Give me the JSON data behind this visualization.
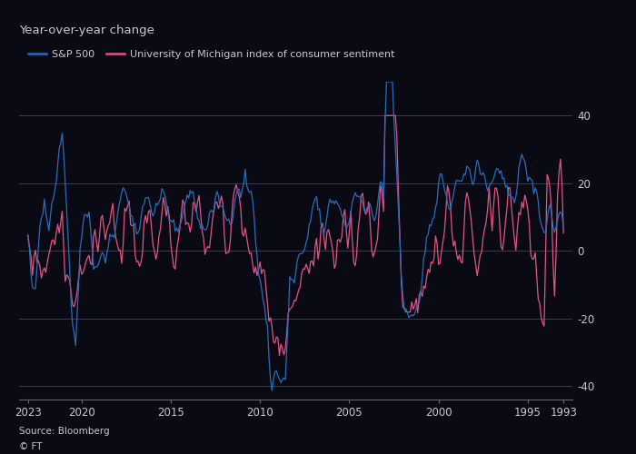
{
  "title": "Year-over-year change",
  "legend_entries": [
    "S&P 500",
    "University of Michigan index of consumer sentiment"
  ],
  "line_colors": [
    "#2b6cb8",
    "#e05585"
  ],
  "xlim": [
    2023.5,
    1992.5
  ],
  "ylim": [
    -44,
    50
  ],
  "yticks": [
    -40,
    -20,
    0,
    20,
    40
  ],
  "xticks": [
    2023,
    2020,
    2015,
    2010,
    2005,
    2000,
    1995,
    1993
  ],
  "xtick_labels": [
    "2023",
    "2020",
    "2015",
    "2010",
    "2005",
    "2000",
    "1995",
    "1993"
  ],
  "source_text": "Source: Bloomberg",
  "copyright_text": "© FT",
  "background_color": "#0a0a14",
  "grid_color": "#444455",
  "text_color": "#c8c8d0",
  "axis_color": "#666677",
  "figsize": [
    7.0,
    5.0
  ],
  "dpi": 100
}
